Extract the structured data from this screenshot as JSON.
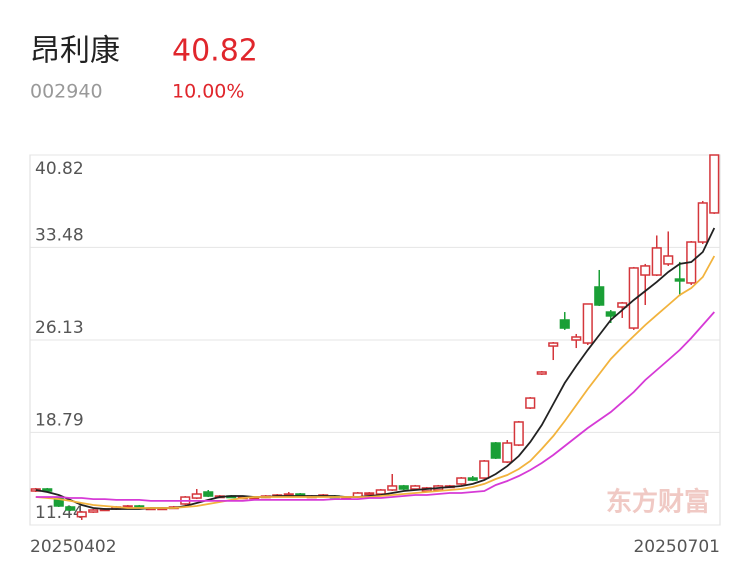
{
  "stock": {
    "name": "昂利康",
    "price": "40.82",
    "code": "002940",
    "change": "10.00%"
  },
  "chart_data": {
    "type": "candlestick",
    "watermark": "东方财富",
    "categories": [
      "20250402",
      null,
      null,
      null,
      null,
      null,
      null,
      null,
      null,
      null,
      null,
      null,
      null,
      null,
      null,
      null,
      null,
      null,
      null,
      null,
      null,
      null,
      null,
      null,
      null,
      null,
      null,
      null,
      null,
      null,
      null,
      null,
      null,
      null,
      null,
      null,
      null,
      null,
      null,
      null,
      null,
      null,
      null,
      null,
      null,
      null,
      null,
      null,
      null,
      null,
      null,
      null,
      null,
      null,
      null,
      null,
      null,
      null,
      null,
      "20250701"
    ],
    "open": [
      14.14,
      14.3,
      13.58,
      12.87,
      12.1,
      12.47,
      12.63,
      12.71,
      12.87,
      12.95,
      12.71,
      12.71,
      12.79,
      13.11,
      13.58,
      14.06,
      13.66,
      13.74,
      13.58,
      13.58,
      13.66,
      13.74,
      13.82,
      13.9,
      13.66,
      13.74,
      13.74,
      13.58,
      13.66,
      13.9,
      13.9,
      14.22,
      14.54,
      14.3,
      14.14,
      14.22,
      14.46,
      14.7,
      15.17,
      15.17,
      17.95,
      16.44,
      17.79,
      20.73,
      23.43,
      25.65,
      27.72,
      26.13,
      25.89,
      30.34,
      28.35,
      28.75,
      27.08,
      31.29,
      31.29,
      32.17,
      30.97,
      30.66,
      33.91,
      36.22
    ],
    "high": [
      14.38,
      14.38,
      13.66,
      12.95,
      12.55,
      12.71,
      12.79,
      12.95,
      13.03,
      13.03,
      12.87,
      12.87,
      12.95,
      13.74,
      14.3,
      14.22,
      13.82,
      13.82,
      13.74,
      13.74,
      13.82,
      13.9,
      14.06,
      13.98,
      13.82,
      13.9,
      13.82,
      13.74,
      14.06,
      14.06,
      14.3,
      15.49,
      14.62,
      14.62,
      14.46,
      14.62,
      14.62,
      15.25,
      15.33,
      16.6,
      18.03,
      18.19,
      19.7,
      21.6,
      23.67,
      25.97,
      28.35,
      26.61,
      28.99,
      31.69,
      28.51,
      29.15,
      31.93,
      32.17,
      34.43,
      34.75,
      32.33,
      33.99,
      37.17,
      40.82
    ],
    "low": [
      14.06,
      14.06,
      12.87,
      12.55,
      11.84,
      12.4,
      12.55,
      12.63,
      12.79,
      12.71,
      12.63,
      12.63,
      12.71,
      13.03,
      13.5,
      13.66,
      13.58,
      13.58,
      13.5,
      13.5,
      13.58,
      13.66,
      13.74,
      13.66,
      13.58,
      13.66,
      13.58,
      13.5,
      13.58,
      13.82,
      13.82,
      14.14,
      14.22,
      14.22,
      14.06,
      14.14,
      14.38,
      14.62,
      14.93,
      15.09,
      16.68,
      16.36,
      17.71,
      20.65,
      23.35,
      24.54,
      26.93,
      25.49,
      25.73,
      28.83,
      27.48,
      27.88,
      26.93,
      28.91,
      31.21,
      32.01,
      29.62,
      30.5,
      33.75,
      36.14
    ],
    "close": [
      14.3,
      14.14,
      12.95,
      12.63,
      12.47,
      12.63,
      12.71,
      12.87,
      12.95,
      12.79,
      12.79,
      12.79,
      12.87,
      13.66,
      13.9,
      13.74,
      13.74,
      13.66,
      13.66,
      13.66,
      13.74,
      13.82,
      13.9,
      13.74,
      13.74,
      13.82,
      13.66,
      13.66,
      13.98,
      13.98,
      14.22,
      14.54,
      14.3,
      14.54,
      14.38,
      14.54,
      14.54,
      15.17,
      15.01,
      16.52,
      16.76,
      17.95,
      19.62,
      21.52,
      23.59,
      25.89,
      27.08,
      26.37,
      28.99,
      28.91,
      28.04,
      29.07,
      31.85,
      32.01,
      33.44,
      32.8,
      30.82,
      33.91,
      37.01,
      40.82
    ],
    "up_color": "#d4363b",
    "down_color": "#1a9f36",
    "ma_lines": [
      {
        "color": "#222222",
        "values": [
          14.22,
          14.06,
          13.82,
          13.43,
          13.03,
          12.79,
          12.71,
          12.71,
          12.71,
          12.71,
          12.79,
          12.79,
          12.79,
          12.95,
          13.19,
          13.43,
          13.66,
          13.74,
          13.74,
          13.66,
          13.66,
          13.74,
          13.74,
          13.74,
          13.74,
          13.74,
          13.74,
          13.66,
          13.66,
          13.74,
          13.82,
          13.98,
          14.14,
          14.22,
          14.3,
          14.38,
          14.46,
          14.54,
          14.7,
          15.01,
          15.49,
          16.12,
          16.92,
          18.03,
          19.38,
          21.05,
          22.72,
          24.07,
          25.34,
          26.53,
          27.72,
          28.51,
          29.31,
          30.02,
          30.74,
          31.53,
          32.17,
          32.32,
          33.12,
          35.02
        ]
      },
      {
        "color": "#f2b33d",
        "values": [
          13.66,
          13.58,
          13.5,
          13.35,
          13.19,
          13.03,
          12.95,
          12.87,
          12.79,
          12.79,
          12.79,
          12.79,
          12.79,
          12.87,
          12.95,
          13.11,
          13.27,
          13.43,
          13.58,
          13.66,
          13.66,
          13.66,
          13.66,
          13.66,
          13.66,
          13.66,
          13.66,
          13.66,
          13.66,
          13.66,
          13.74,
          13.82,
          13.9,
          13.98,
          14.06,
          14.14,
          14.22,
          14.3,
          14.46,
          14.7,
          15.09,
          15.41,
          15.89,
          16.52,
          17.48,
          18.51,
          19.7,
          20.97,
          22.24,
          23.43,
          24.62,
          25.57,
          26.45,
          27.32,
          28.12,
          28.91,
          29.7,
          30.26,
          31.13,
          32.8
        ]
      },
      {
        "color": "#d63ad6",
        "values": [
          13.66,
          13.66,
          13.66,
          13.58,
          13.58,
          13.5,
          13.5,
          13.43,
          13.43,
          13.43,
          13.35,
          13.35,
          13.35,
          13.35,
          13.35,
          13.35,
          13.35,
          13.35,
          13.35,
          13.43,
          13.43,
          13.43,
          13.43,
          13.43,
          13.43,
          13.43,
          13.5,
          13.5,
          13.5,
          13.58,
          13.58,
          13.66,
          13.74,
          13.82,
          13.82,
          13.9,
          13.98,
          13.98,
          14.06,
          14.14,
          14.62,
          14.93,
          15.33,
          15.81,
          16.36,
          17.0,
          17.71,
          18.43,
          19.14,
          19.78,
          20.41,
          21.2,
          22.0,
          22.95,
          23.75,
          24.54,
          25.34,
          26.29,
          27.32,
          28.35
        ]
      }
    ],
    "ylim": [
      11.44,
      40.82
    ],
    "yticks": [
      11.44,
      18.79,
      26.13,
      33.48,
      40.82
    ],
    "grid": true
  }
}
